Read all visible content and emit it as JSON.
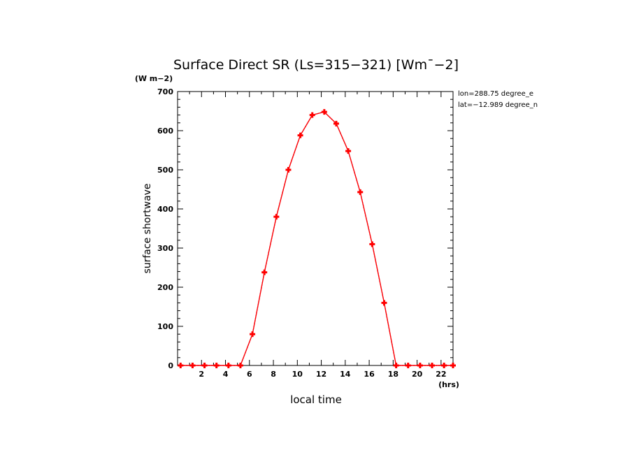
{
  "chart_data": {
    "type": "line",
    "title": "Surface Direct SR (Ls=315-321) [Wm^-2]",
    "title_display": "Surface Direct SR (Ls=315−321) [Wm¯−2]",
    "units_label": "(W m−2)",
    "xlabel": "local time",
    "xunits": "(hrs)",
    "ylabel": "surface shortwave",
    "annotations": [
      "lon=288.75 degree_e",
      "lat=−12.989 degree_n"
    ],
    "xlim": [
      0,
      23
    ],
    "ylim": [
      0,
      700
    ],
    "x_ticks": [
      2,
      4,
      6,
      8,
      10,
      12,
      14,
      16,
      18,
      20,
      22
    ],
    "y_ticks": [
      0,
      100,
      200,
      300,
      400,
      500,
      600,
      700
    ],
    "grid": false,
    "colors": {
      "line": "#ff0000",
      "marker": "#ff0000",
      "underlay": "#0000cc",
      "axis": "#000000"
    },
    "series": [
      {
        "x": [
          0.25,
          1.25,
          2.25,
          3.25,
          4.25,
          5.25,
          6.25,
          7.25,
          8.25,
          9.25,
          10.25,
          11.25,
          12.25,
          13.25,
          14.25,
          15.25,
          16.25,
          17.25,
          18.25,
          19.25,
          20.25,
          21.25,
          22.25,
          23.0
        ],
        "values": [
          0,
          0,
          0,
          0,
          0,
          0,
          80,
          238,
          380,
          500,
          588,
          640,
          648,
          618,
          548,
          443,
          310,
          160,
          0,
          0,
          0,
          0,
          0,
          0
        ]
      }
    ]
  }
}
